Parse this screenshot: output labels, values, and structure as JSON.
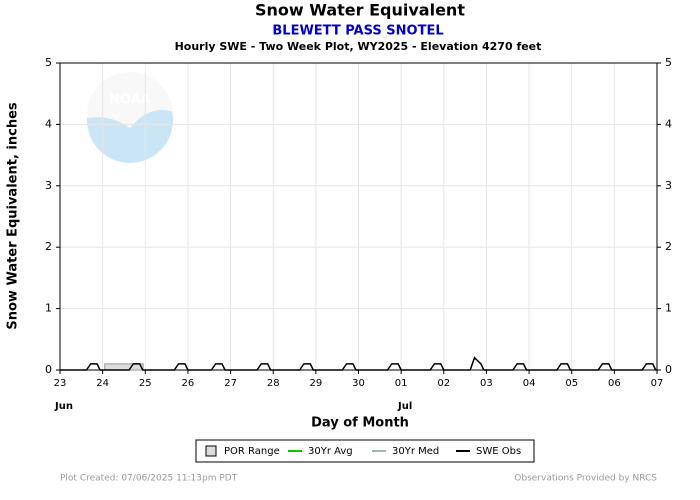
{
  "chart_data": {
    "type": "line",
    "title": "Snow Water Equivalent",
    "subtitle": "BLEWETT PASS SNOTEL",
    "description": "Hourly SWE - Two Week Plot, WY2025 -  Elevation 4270 feet",
    "y_label": "Snow Water Equivalent, inches",
    "x_label": "Day of Month",
    "logo_text": "NOAA",
    "footer_left": "Plot Created: 07/06/2025 11:13pm PDT",
    "footer_right": "Observations Provided by NRCS",
    "xlim": [
      0,
      14
    ],
    "xticks": [
      {
        "value": 0,
        "label": "23"
      },
      {
        "value": 1,
        "label": "24"
      },
      {
        "value": 2,
        "label": "25"
      },
      {
        "value": 3,
        "label": "26"
      },
      {
        "value": 4,
        "label": "27"
      },
      {
        "value": 5,
        "label": "28"
      },
      {
        "value": 6,
        "label": "29"
      },
      {
        "value": 7,
        "label": "30"
      },
      {
        "value": 8,
        "label": "01"
      },
      {
        "value": 9,
        "label": "02"
      },
      {
        "value": 10,
        "label": "03"
      },
      {
        "value": 11,
        "label": "04"
      },
      {
        "value": 12,
        "label": "05"
      },
      {
        "value": 13,
        "label": "06"
      },
      {
        "value": 14,
        "label": "07"
      }
    ],
    "month_labels": [
      {
        "value": 0,
        "label": "Jun"
      },
      {
        "value": 8,
        "label": "Jul"
      }
    ],
    "ylim": [
      0,
      5
    ],
    "yticks": [
      0,
      1,
      2,
      3,
      4,
      5
    ],
    "grid": true,
    "series": [
      {
        "name": "POR Range",
        "color": "#dcdcdc",
        "style": "band",
        "x": [
          1.05,
          1.95
        ],
        "upper": [
          0.1,
          0.1
        ],
        "lower": [
          0,
          0
        ]
      },
      {
        "name": "30Yr Avg",
        "color": "#00cc00",
        "style": "line"
      },
      {
        "name": "30Yr Med",
        "color": "#99bbaa",
        "style": "line"
      },
      {
        "name": "SWE Obs",
        "color": "#000000",
        "style": "line",
        "x": [
          0,
          0.62,
          0.72,
          0.87,
          0.94,
          1.62,
          1.72,
          1.87,
          1.94,
          2.68,
          2.78,
          2.93,
          3.0,
          3.55,
          3.65,
          3.8,
          3.87,
          4.62,
          4.72,
          4.87,
          4.94,
          5.62,
          5.72,
          5.87,
          5.94,
          6.62,
          6.72,
          6.87,
          6.94,
          7.68,
          7.78,
          7.93,
          8.0,
          8.68,
          8.78,
          8.93,
          9.0,
          9.62,
          9.72,
          9.87,
          9.94,
          10.62,
          10.72,
          10.87,
          10.94,
          11.65,
          11.75,
          11.9,
          11.97,
          12.62,
          12.72,
          12.87,
          12.94,
          13.65,
          13.75,
          13.9,
          13.97,
          14
        ],
        "values": [
          0,
          0,
          0.1,
          0.1,
          0,
          0,
          0.1,
          0.1,
          0,
          0,
          0.1,
          0.1,
          0,
          0,
          0.1,
          0.1,
          0,
          0,
          0.1,
          0.1,
          0,
          0,
          0.1,
          0.1,
          0,
          0,
          0.1,
          0.1,
          0,
          0,
          0.1,
          0.1,
          0,
          0,
          0.1,
          0.1,
          0,
          0,
          0.2,
          0.1,
          0,
          0,
          0.1,
          0.1,
          0,
          0,
          0.1,
          0.1,
          0,
          0,
          0.1,
          0.1,
          0,
          0,
          0.1,
          0.1,
          0,
          0
        ]
      }
    ]
  }
}
